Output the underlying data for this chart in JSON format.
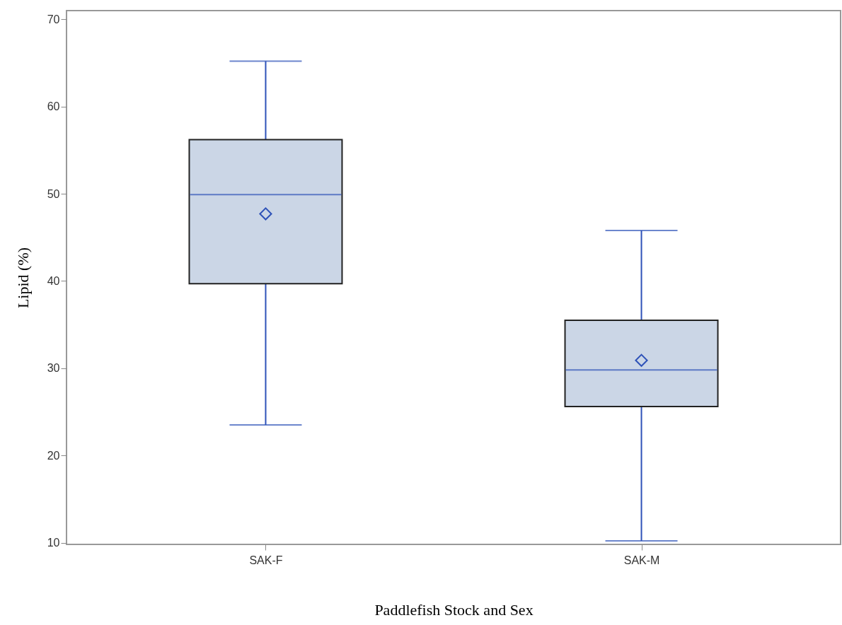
{
  "chart_data": {
    "type": "box",
    "xlabel": "Paddlefish Stock and Sex",
    "ylabel": "Lipid (%)",
    "categories": [
      "SAK-F",
      "SAK-M"
    ],
    "boxes": [
      {
        "low": 23.5,
        "q1": 39.7,
        "median": 49.9,
        "q3": 56.2,
        "high": 65.2,
        "mean": 47.7
      },
      {
        "low": 10.2,
        "q1": 25.6,
        "median": 29.8,
        "q3": 35.5,
        "high": 45.8,
        "mean": 30.9
      }
    ],
    "color": "#cbd6e6",
    "marker": "diamond",
    "ylim": [
      9.8,
      71
    ],
    "yticks": [
      10,
      20,
      30,
      40,
      50,
      60,
      70
    ],
    "grid": false
  }
}
